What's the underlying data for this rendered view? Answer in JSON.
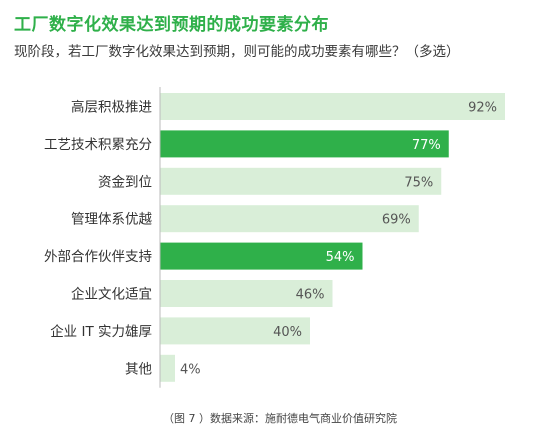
{
  "title": "工厂数字化效果达到预期的成功要素分布",
  "subtitle": "现阶段，若工厂数字化效果达到预期，则可能的成功要素有哪些？（多选）",
  "source": "（图 7 ）数据来源：施耐德电气商业价值研究院",
  "colors": {
    "highlight": "#2fb04a",
    "normal": "#d9eed8",
    "label_on_highlight": "#ffffff",
    "label_on_normal": "#555555",
    "axis": "#bbbbbb"
  },
  "chart_data": {
    "type": "bar",
    "orientation": "horizontal",
    "unit": "%",
    "xlim": [
      0,
      100
    ],
    "categories": [
      "高层积极推进",
      "工艺技术积累充分",
      "资金到位",
      "管理体系优越",
      "外部合作伙伴支持",
      "企业文化适宜",
      "企业 IT 实力雄厚",
      "其他"
    ],
    "values": [
      92,
      77,
      75,
      69,
      54,
      46,
      40,
      4
    ],
    "data_labels": [
      "92%",
      "77%",
      "75%",
      "69%",
      "54%",
      "46%",
      "40%",
      "4%"
    ],
    "highlighted": [
      false,
      true,
      false,
      false,
      true,
      false,
      false,
      false
    ],
    "grid": false,
    "legend": "none"
  }
}
